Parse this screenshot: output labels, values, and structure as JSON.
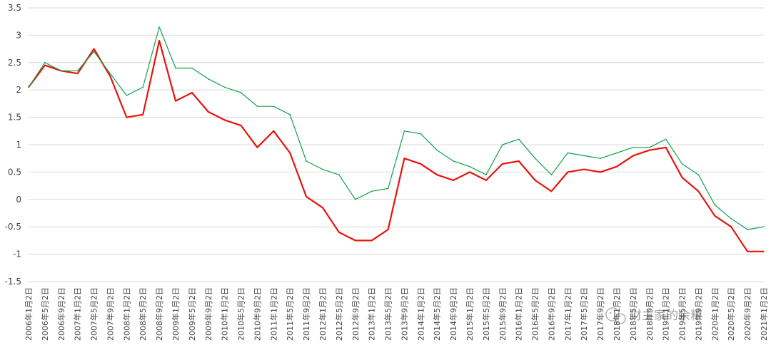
{
  "chart_data": {
    "type": "line",
    "title": "",
    "xlabel": "",
    "ylabel": "",
    "ylim": [
      -1.5,
      3.5
    ],
    "yticks": [
      "3.5",
      "3",
      "2.5",
      "2",
      "1.5",
      "1",
      "0.5",
      "0",
      "-0.5",
      "-1",
      "-1.5"
    ],
    "ytick_values": [
      3.5,
      3,
      2.5,
      2,
      1.5,
      1,
      0.5,
      0,
      -0.5,
      -1,
      -1.5
    ],
    "grid": true,
    "legend": "none",
    "x_categories": [
      "2006年1月2日",
      "2006年5月2日",
      "2006年9月2日",
      "2007年1月2日",
      "2007年5月2日",
      "2007年9月2日",
      "2008年1月2日",
      "2008年5月2日",
      "2008年9月2日",
      "2009年1月2日",
      "2009年5月2日",
      "2009年9月2日",
      "2010年1月2日",
      "2010年5月2日",
      "2010年9月2日",
      "2011年1月2日",
      "2011年5月2日",
      "2011年9月2日",
      "2012年1月2日",
      "2012年5月2日",
      "2012年9月2日",
      "2013年1月2日",
      "2013年5月2日",
      "2013年9月2日",
      "2014年1月2日",
      "2014年5月2日",
      "2014年9月2日",
      "2015年1月2日",
      "2015年5月2日",
      "2015年9月2日",
      "2016年1月2日",
      "2016年5月2日",
      "2016年9月2日",
      "2017年1月2日",
      "2017年5月2日",
      "2017年9月2日",
      "2018年1月2日",
      "2018年5月2日",
      "2018年9月2日",
      "2019年1月2日",
      "2019年5月2日",
      "2019年9月2日",
      "2020年1月2日",
      "2020年5月2日",
      "2020年9月2日",
      "2021年1月2日"
    ],
    "series": [
      {
        "color": "#e8120c",
        "values": [
          2.05,
          2.45,
          2.35,
          2.3,
          2.75,
          2.25,
          1.5,
          1.55,
          2.9,
          1.8,
          1.95,
          1.6,
          1.45,
          1.35,
          0.95,
          1.25,
          0.85,
          0.05,
          -0.15,
          -0.6,
          -0.75,
          -0.75,
          -0.55,
          0.75,
          0.65,
          0.45,
          0.35,
          0.5,
          0.35,
          0.65,
          0.7,
          0.35,
          0.15,
          0.5,
          0.55,
          0.5,
          0.6,
          0.8,
          0.9,
          0.95,
          0.4,
          0.15,
          -0.3,
          -0.5,
          -0.95,
          -0.95
        ]
      },
      {
        "color": "#12a14b",
        "values": [
          2.05,
          2.5,
          2.35,
          2.35,
          2.7,
          2.3,
          1.9,
          2.05,
          3.15,
          2.4,
          2.4,
          2.2,
          2.05,
          1.95,
          1.7,
          1.7,
          1.55,
          0.7,
          0.55,
          0.45,
          0.0,
          0.15,
          0.2,
          1.25,
          1.2,
          0.9,
          0.7,
          0.6,
          0.45,
          1.0,
          1.1,
          0.75,
          0.45,
          0.85,
          0.8,
          0.75,
          0.85,
          0.95,
          0.95,
          1.1,
          0.65,
          0.45,
          -0.1,
          -0.35,
          -0.55,
          -0.5
        ]
      }
    ]
  },
  "watermark": {
    "text": "财主家的余粮",
    "icon": "wechat-icon"
  }
}
